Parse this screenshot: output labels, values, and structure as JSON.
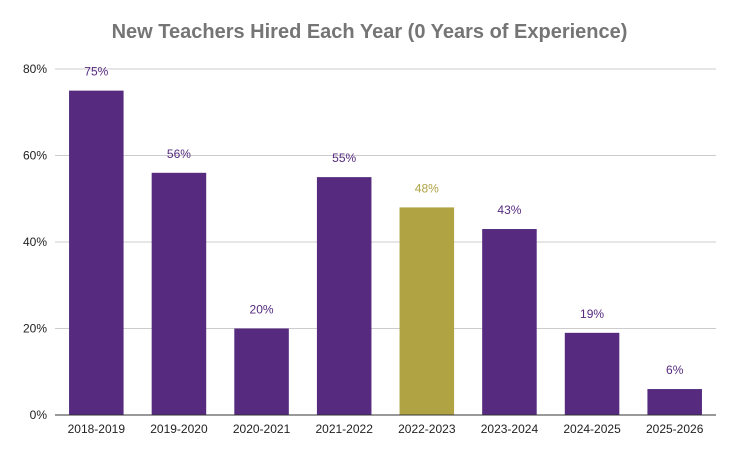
{
  "chart_data": {
    "type": "bar",
    "title": "New Teachers Hired Each Year (0 Years of Experience)",
    "xlabel": "",
    "ylabel": "",
    "categories": [
      "2018-2019",
      "2019-2020",
      "2020-2021",
      "2021-2022",
      "2022-2023",
      "2023-2024",
      "2024-2025",
      "2025-2026"
    ],
    "values": [
      75,
      56,
      20,
      55,
      48,
      43,
      19,
      6
    ],
    "data_labels": [
      "75%",
      "56%",
      "20%",
      "55%",
      "48%",
      "43%",
      "19%",
      "6%"
    ],
    "ylim": [
      0,
      80
    ],
    "y_ticks": [
      0,
      20,
      40,
      60,
      80
    ],
    "y_tick_labels": [
      "0%",
      "20%",
      "40%",
      "60%",
      "80%"
    ],
    "grid": true,
    "legend": "none",
    "colors": {
      "default_bar": "#552a7f",
      "highlight_bar": "#b0a344",
      "title": "#757575",
      "gridline": "#cccccc",
      "axis": "#333333"
    },
    "highlight_category": "2022-2023"
  }
}
